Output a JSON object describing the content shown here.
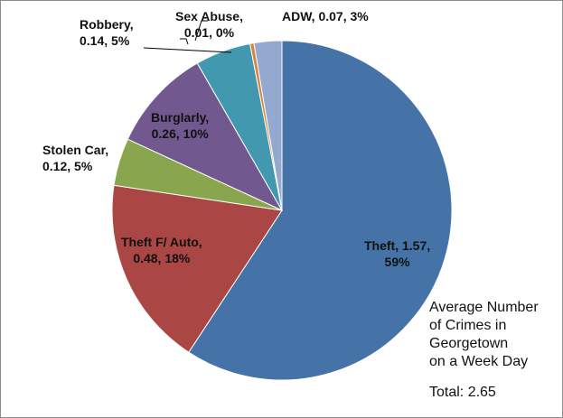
{
  "chart_data": {
    "type": "pie",
    "title": "Average Number of Crimes in Georgetown on a Week Day",
    "title_lines": [
      "Average Number",
      "of Crimes in",
      "Georgetown",
      "on a Week Day"
    ],
    "total_label": "Total: 2.65",
    "start": "top, clockwise",
    "slices": [
      {
        "name": "Theft",
        "value": 1.57,
        "percent": 59,
        "color": "#4572A7",
        "label": [
          "Theft, 1.57,",
          "59%"
        ]
      },
      {
        "name": "Theft F/ Auto",
        "value": 0.48,
        "percent": 18,
        "color": "#AA4643",
        "label": [
          "Theft F/ Auto,",
          "0.48, 18%"
        ]
      },
      {
        "name": "Stolen Car",
        "value": 0.12,
        "percent": 5,
        "color": "#89A54E",
        "label": [
          "Stolen Car,",
          "0.12, 5%"
        ]
      },
      {
        "name": "Burglarly",
        "value": 0.26,
        "percent": 10,
        "color": "#71588F",
        "label": [
          "Burglarly,",
          "0.26, 10%"
        ]
      },
      {
        "name": "Robbery",
        "value": 0.14,
        "percent": 5,
        "color": "#4198AF",
        "label": [
          "Robbery,",
          "0.14, 5%"
        ]
      },
      {
        "name": "Sex Abuse",
        "value": 0.01,
        "percent": 0,
        "color": "#DB843D",
        "label": [
          "Sex Abuse,",
          "0.01, 0%"
        ]
      },
      {
        "name": "ADW",
        "value": 0.07,
        "percent": 3,
        "color": "#93A9CF",
        "label": [
          "ADW, 0.07, 3%"
        ]
      }
    ]
  }
}
